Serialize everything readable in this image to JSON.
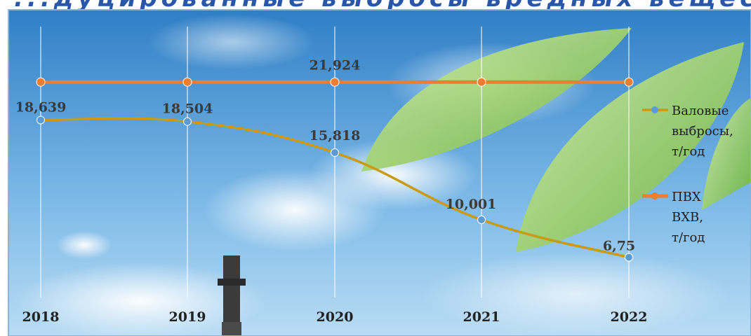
{
  "chart_data": {
    "type": "line",
    "categories": [
      "2018",
      "2019",
      "2020",
      "2021",
      "2022"
    ],
    "series": [
      {
        "name": "Валовые выбросы, т/год",
        "legend_lines": [
          "Валовые",
          "выбросы,",
          "т/год"
        ],
        "values": [
          18.639,
          18.504,
          15.818,
          10.001,
          6.75
        ],
        "labels": [
          "18,639",
          "18,504",
          "15,818",
          "10,001",
          "6,75"
        ],
        "color": "#c99a16",
        "marker_color": "#5b9bd5"
      },
      {
        "name": "ПВХ ВХВ, т/год",
        "legend_lines": [
          "ПВХ",
          "ВХВ,",
          "т/год"
        ],
        "values": [
          21.924,
          21.924,
          21.924,
          21.924,
          21.924
        ],
        "labels": [
          "",
          "",
          "21,924",
          "",
          ""
        ],
        "color": "#ed7d31",
        "marker_color": "#ed7d31"
      }
    ],
    "title": "",
    "xlabel": "",
    "ylabel": "",
    "ylim": [
      4,
      23
    ],
    "grid": "vertical",
    "legend_position": "right"
  },
  "colors": {
    "sky_top": "#2f7fc6",
    "sky_bottom": "#b9dcf4",
    "label": "#3a3a3a",
    "grid": "#ffffff"
  },
  "header": {
    "title_fragment": "...дуцированные выбросы вредных веществ в атмосферу..."
  }
}
